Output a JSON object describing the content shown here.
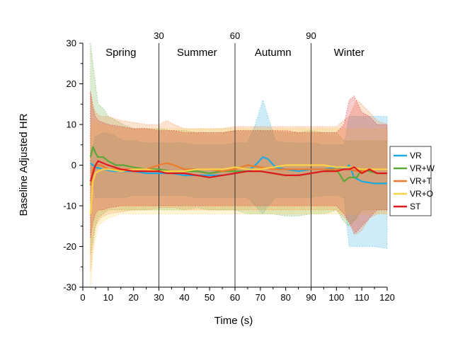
{
  "chart_data": {
    "type": "line",
    "title": "",
    "xlabel": "Time (s)",
    "ylabel": "Baseline Adjusted HR",
    "xlim": [
      0,
      120
    ],
    "ylim": [
      -30,
      30
    ],
    "xticks": [
      0,
      10,
      20,
      30,
      40,
      50,
      60,
      70,
      80,
      90,
      100,
      110,
      120
    ],
    "yticks": [
      -30,
      -20,
      -10,
      0,
      10,
      20,
      30
    ],
    "grid": false,
    "legend_position": "right",
    "vertical_lines": [
      {
        "x": 30,
        "label": "30"
      },
      {
        "x": 60,
        "label": "60"
      },
      {
        "x": 90,
        "label": "90"
      }
    ],
    "annotations": [
      {
        "text": "Spring",
        "x": 15
      },
      {
        "text": "Summer",
        "x": 45
      },
      {
        "text": "Autumn",
        "x": 75
      },
      {
        "text": "Winter",
        "x": 105
      }
    ],
    "series": [
      {
        "name": "VR",
        "color": "#1ea9e0",
        "x": [
          3,
          5,
          8,
          12,
          16,
          20,
          25,
          30,
          35,
          40,
          45,
          50,
          55,
          60,
          65,
          68,
          71,
          73,
          76,
          80,
          85,
          90,
          95,
          100,
          103,
          105,
          107,
          110,
          115,
          120
        ],
        "y": [
          0.5,
          -0.5,
          -1,
          -1.5,
          -1.5,
          -1.5,
          -2,
          -2,
          -2,
          -2.5,
          -2.5,
          -2.5,
          -2.5,
          -2,
          -1.5,
          0,
          2,
          1.5,
          -0.5,
          -1,
          -1.5,
          -1,
          -1,
          -0.5,
          -1,
          0,
          -3,
          -4,
          -4.5,
          -4.5
        ],
        "upper": [
          2,
          7,
          8,
          7.5,
          6,
          6,
          5.5,
          5.5,
          5.5,
          5.5,
          5,
          5,
          5,
          5.5,
          5.5,
          10,
          16,
          12,
          6,
          5.5,
          5.5,
          5.5,
          5,
          5,
          5,
          12,
          12,
          12,
          12,
          12
        ],
        "lower": [
          -1,
          -8,
          -8,
          -8,
          -8,
          -7.5,
          -7.5,
          -7.5,
          -7.5,
          -7.5,
          -8,
          -8,
          -8,
          -8,
          -8,
          -10,
          -12,
          -10,
          -8,
          -8,
          -8,
          -8,
          -7.5,
          -7.5,
          -8,
          -20,
          -20,
          -20,
          -20,
          -20.5
        ]
      },
      {
        "name": "VR+W",
        "color": "#5aa737",
        "x": [
          3,
          4,
          5,
          6,
          8,
          10,
          13,
          16,
          20,
          25,
          30,
          35,
          40,
          45,
          50,
          55,
          60,
          65,
          70,
          75,
          80,
          85,
          90,
          95,
          100,
          103,
          105,
          108,
          110,
          113,
          116,
          120
        ],
        "y": [
          2,
          4.5,
          3,
          2,
          2,
          1,
          0,
          0,
          -0.5,
          -1,
          -1,
          -1.5,
          -1.5,
          -1.5,
          -2,
          -1.5,
          -1.5,
          -1.5,
          -1.5,
          -2,
          -2.5,
          -2.5,
          -2,
          -1.5,
          -1,
          -4,
          -3,
          -3,
          -1,
          -1.5,
          -2,
          -2
        ],
        "upper": [
          30,
          25,
          20,
          15,
          14,
          12,
          11,
          10,
          9,
          9,
          9,
          8.5,
          8.5,
          8,
          8,
          8,
          8.5,
          8.5,
          8.5,
          8.5,
          8,
          8,
          8.5,
          8,
          8,
          6,
          6,
          6,
          6,
          6,
          6,
          6
        ],
        "lower": [
          -22,
          -18,
          -15,
          -13,
          -12,
          -11,
          -11,
          -11,
          -11,
          -11,
          -11,
          -11,
          -11,
          -10.5,
          -11,
          -11,
          -11,
          -12,
          -12,
          -12,
          -12.5,
          -12.5,
          -12,
          -12,
          -11,
          -14,
          -15,
          -13,
          -11,
          -11,
          -11,
          -11
        ]
      },
      {
        "name": "VR+T",
        "color": "#f07a2c",
        "x": [
          3,
          4,
          5,
          7,
          10,
          15,
          20,
          25,
          30,
          33,
          36,
          40,
          45,
          50,
          55,
          60,
          65,
          70,
          75,
          80,
          85,
          90,
          95,
          100,
          105,
          108,
          110,
          113,
          116,
          120
        ],
        "y": [
          -5,
          -1,
          0,
          0,
          -1,
          -1,
          -1,
          -1,
          0,
          0.5,
          0,
          -1,
          -1,
          -1,
          -1.5,
          -1,
          0,
          -0.5,
          -1,
          -1,
          -1,
          -1,
          -1,
          -1,
          -1,
          -1.5,
          -1.5,
          -1,
          -1,
          -1
        ],
        "upper": [
          18,
          15,
          13,
          12,
          12,
          11,
          10.5,
          10,
          10,
          11,
          10,
          9,
          9,
          9,
          9,
          9.5,
          9.5,
          9.5,
          9.5,
          9.5,
          9.5,
          9.5,
          9.5,
          9.5,
          12,
          16,
          15,
          13,
          11,
          10
        ],
        "lower": [
          -26,
          -20,
          -15,
          -13,
          -12,
          -11.5,
          -11,
          -11,
          -10.5,
          -10.5,
          -10.5,
          -11,
          -11,
          -11,
          -11,
          -11,
          -11,
          -11,
          -11,
          -11,
          -11,
          -11,
          -11,
          -11,
          -14,
          -17,
          -16,
          -13,
          -12,
          -12
        ]
      },
      {
        "name": "VR+O",
        "color": "#fbd146",
        "x": [
          3,
          4,
          5,
          6,
          8,
          10,
          15,
          20,
          25,
          30,
          35,
          40,
          45,
          50,
          55,
          60,
          65,
          70,
          75,
          80,
          85,
          90,
          95,
          100,
          105,
          110,
          115,
          120
        ],
        "y": [
          -12,
          -4,
          -2,
          -1.5,
          -1,
          -1,
          -1.5,
          -1,
          -1,
          -1.5,
          -1.5,
          -1.5,
          -1,
          -1,
          -1,
          -0.5,
          -1,
          -1,
          -0.5,
          0,
          0,
          0,
          0,
          -0.5,
          -0.5,
          -1,
          -1,
          -1
        ],
        "upper": [
          8,
          10,
          11,
          10,
          10,
          9.5,
          9,
          9,
          9,
          9,
          9,
          9,
          9,
          9,
          9,
          9,
          9,
          9,
          9,
          9,
          9,
          9,
          9,
          9,
          9,
          9,
          9,
          9
        ],
        "lower": [
          -30,
          -22,
          -18,
          -15,
          -14,
          -13,
          -12,
          -12,
          -12,
          -12,
          -12,
          -12,
          -12,
          -12,
          -12,
          -12,
          -12,
          -12,
          -12,
          -12,
          -12,
          -12,
          -12,
          -12,
          -12,
          -12,
          -12,
          -12
        ]
      },
      {
        "name": "ST",
        "color": "#e0191e",
        "x": [
          3,
          4,
          5,
          6,
          8,
          10,
          15,
          20,
          25,
          30,
          33,
          36,
          40,
          45,
          50,
          55,
          60,
          65,
          70,
          75,
          80,
          85,
          90,
          95,
          100,
          103,
          105,
          107,
          110,
          113,
          116,
          120
        ],
        "y": [
          -4,
          -2,
          0,
          1,
          0.5,
          0,
          -1,
          -1.5,
          -1.5,
          -1.5,
          -2,
          -2,
          -2,
          -2.5,
          -3,
          -2.5,
          -2,
          -1.5,
          -1.5,
          -2,
          -2.5,
          -2.5,
          -2,
          -1.5,
          -1.5,
          -1,
          -1,
          -0.5,
          -2,
          -1,
          -2,
          -2
        ],
        "upper": [
          18,
          14,
          12,
          11,
          10.5,
          10,
          9.5,
          9,
          9,
          8.5,
          8.5,
          8.5,
          8,
          8,
          8,
          8,
          8.5,
          8.5,
          8.5,
          8.5,
          8.5,
          8,
          8,
          8,
          8,
          10,
          16,
          17,
          13,
          12,
          10,
          10
        ],
        "lower": [
          -18,
          -14,
          -12,
          -11,
          -11,
          -10.5,
          -10,
          -10,
          -10,
          -10,
          -10,
          -10,
          -10,
          -10,
          -10,
          -10,
          -10,
          -10,
          -10,
          -10,
          -10,
          -10,
          -10,
          -10,
          -10,
          -12,
          -14,
          -17,
          -15,
          -13,
          -11,
          -11
        ]
      }
    ]
  }
}
